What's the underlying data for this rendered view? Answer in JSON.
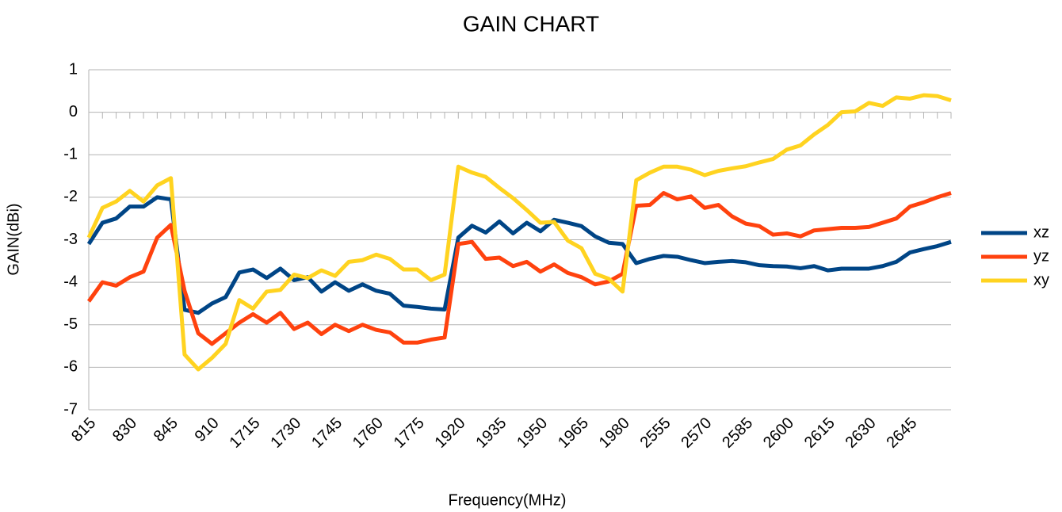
{
  "chart_data": {
    "type": "line",
    "title": "GAIN CHART",
    "x_label": "Frequency(MHz)",
    "y_label": "GAIN(dBi)",
    "categories": [
      "815",
      null,
      null,
      "830",
      null,
      null,
      "845",
      null,
      null,
      "910",
      null,
      null,
      "1715",
      null,
      null,
      "1730",
      null,
      null,
      "1745",
      null,
      null,
      "1760",
      null,
      null,
      "1775",
      null,
      null,
      "1920",
      null,
      null,
      "1935",
      null,
      null,
      "1950",
      null,
      null,
      "1965",
      null,
      null,
      "1980",
      null,
      null,
      "2555",
      null,
      null,
      "2570",
      null,
      null,
      "2585",
      null,
      null,
      "2600",
      null,
      null,
      "2615",
      null,
      null,
      "2630",
      null,
      null,
      "2645",
      null,
      null,
      null
    ],
    "series": [
      {
        "name": "xz",
        "color": "#004586",
        "values": [
          -3.1,
          -2.6,
          -2.5,
          -2.22,
          -2.22,
          -2.0,
          -2.05,
          -4.65,
          -4.72,
          -4.5,
          -4.35,
          -3.77,
          -3.7,
          -3.9,
          -3.68,
          -3.95,
          -3.88,
          -4.22,
          -4.0,
          -4.2,
          -4.05,
          -4.2,
          -4.27,
          -4.55,
          -4.58,
          -4.62,
          -4.64,
          -2.95,
          -2.67,
          -2.83,
          -2.57,
          -2.85,
          -2.6,
          -2.8,
          -2.53,
          -2.6,
          -2.68,
          -2.92,
          -3.07,
          -3.1,
          -3.55,
          -3.45,
          -3.38,
          -3.4,
          -3.48,
          -3.55,
          -3.52,
          -3.5,
          -3.53,
          -3.6,
          -3.62,
          -3.63,
          -3.67,
          -3.62,
          -3.72,
          -3.68,
          -3.68,
          -3.68,
          -3.62,
          -3.52,
          -3.3,
          -3.22,
          -3.15,
          -3.05
        ]
      },
      {
        "name": "yz",
        "color": "#ff420e",
        "values": [
          -4.45,
          -4.0,
          -4.08,
          -3.88,
          -3.75,
          -2.95,
          -2.65,
          -4.2,
          -5.2,
          -5.45,
          -5.2,
          -4.95,
          -4.75,
          -4.95,
          -4.72,
          -5.1,
          -4.95,
          -5.22,
          -5.0,
          -5.15,
          -5.0,
          -5.12,
          -5.18,
          -5.42,
          -5.42,
          -5.35,
          -5.3,
          -3.1,
          -3.05,
          -3.45,
          -3.42,
          -3.62,
          -3.52,
          -3.75,
          -3.58,
          -3.78,
          -3.88,
          -4.05,
          -3.98,
          -3.8,
          -2.2,
          -2.18,
          -1.9,
          -2.05,
          -1.98,
          -2.25,
          -2.18,
          -2.45,
          -2.62,
          -2.68,
          -2.88,
          -2.85,
          -2.92,
          -2.78,
          -2.75,
          -2.72,
          -2.72,
          -2.7,
          -2.6,
          -2.5,
          -2.22,
          -2.12,
          -2.0,
          -1.9
        ]
      },
      {
        "name": "xy",
        "color": "#ffd320",
        "values": [
          -2.95,
          -2.25,
          -2.1,
          -1.85,
          -2.1,
          -1.72,
          -1.55,
          -5.7,
          -6.05,
          -5.78,
          -5.45,
          -4.42,
          -4.62,
          -4.22,
          -4.18,
          -3.82,
          -3.9,
          -3.72,
          -3.85,
          -3.52,
          -3.48,
          -3.35,
          -3.45,
          -3.7,
          -3.7,
          -3.95,
          -3.82,
          -1.28,
          -1.42,
          -1.52,
          -1.78,
          -2.02,
          -2.3,
          -2.6,
          -2.58,
          -3.02,
          -3.2,
          -3.8,
          -3.92,
          -4.22,
          -1.6,
          -1.42,
          -1.28,
          -1.28,
          -1.35,
          -1.48,
          -1.38,
          -1.32,
          -1.27,
          -1.18,
          -1.1,
          -0.88,
          -0.78,
          -0.52,
          -0.3,
          0.0,
          0.02,
          0.22,
          0.15,
          0.35,
          0.32,
          0.4,
          0.38,
          0.28
        ]
      }
    ],
    "ylim": [
      -7,
      1
    ],
    "yticks": [
      -7,
      -6,
      -5,
      -4,
      -3,
      -2,
      -1,
      0,
      1
    ],
    "grid": true,
    "legend": "right"
  }
}
